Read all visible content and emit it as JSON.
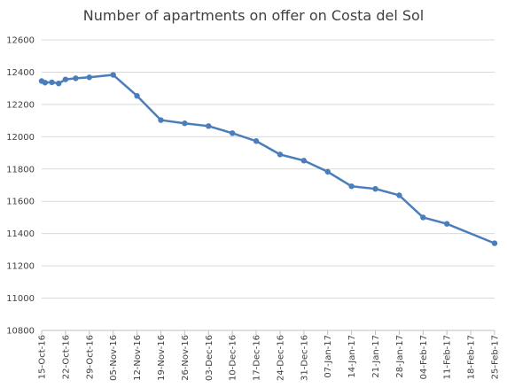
{
  "chart_data": {
    "type": "line",
    "title": "Number of apartments on offer on Costa del Sol",
    "xlabel": "",
    "ylabel": "",
    "ylim": [
      10800,
      12600
    ],
    "yticks": [
      10800,
      11000,
      11200,
      11400,
      11600,
      11800,
      12000,
      12200,
      12400,
      12600
    ],
    "xlim": [
      "2016-10-15",
      "2017-02-25"
    ],
    "xtick_labels": [
      "15-Oct-16",
      "22-Oct-16",
      "29-Oct-16",
      "05-Nov-16",
      "12-Nov-16",
      "19-Nov-16",
      "26-Nov-16",
      "03-Dec-16",
      "10-Dec-16",
      "17-Dec-16",
      "24-Dec-16",
      "31-Dec-16",
      "07-Jan-17",
      "14-Jan-17",
      "21-Jan-17",
      "28-Jan-17",
      "04-Feb-17",
      "11-Feb-17",
      "18-Feb-17",
      "25-Feb-17"
    ],
    "grid": true,
    "legend": "none",
    "series_color": "#4a7ebb",
    "series": [
      {
        "points": [
          [
            "2016-10-15",
            12345
          ],
          [
            "2016-10-16",
            12335
          ],
          [
            "2016-10-18",
            12337
          ],
          [
            "2016-10-20",
            12330
          ],
          [
            "2016-10-22",
            12355
          ],
          [
            "2016-10-25",
            12362
          ],
          [
            "2016-10-29",
            12368
          ],
          [
            "2016-11-05",
            12383
          ],
          [
            "2016-11-12",
            12253
          ],
          [
            "2016-11-19",
            12103
          ],
          [
            "2016-11-26",
            12083
          ],
          [
            "2016-12-03",
            12066
          ],
          [
            "2016-12-10",
            12022
          ],
          [
            "2016-12-17",
            11973
          ],
          [
            "2016-12-24",
            11890
          ],
          [
            "2016-12-31",
            11852
          ],
          [
            "2017-01-07",
            11783
          ],
          [
            "2017-01-14",
            11693
          ],
          [
            "2017-01-21",
            11677
          ],
          [
            "2017-01-28",
            11637
          ],
          [
            "2017-02-04",
            11500
          ],
          [
            "2017-02-11",
            11460
          ],
          [
            "2017-02-25",
            11340
          ]
        ]
      }
    ]
  }
}
